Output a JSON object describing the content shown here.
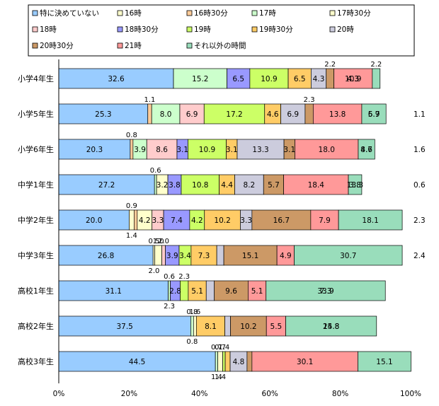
{
  "chart_data": {
    "type": "bar",
    "orientation": "horizontal",
    "stacked": "percent",
    "xlim": [
      0,
      100
    ],
    "x_ticks": [
      "0%",
      "20%",
      "40%",
      "60%",
      "80%",
      "100%"
    ],
    "legend_position": "top",
    "grid": false,
    "categories": [
      "小学4年生",
      "小学5年生",
      "小学6年生",
      "中学1年生",
      "中学2年生",
      "中学3年生",
      "高校1年生",
      "高校2年生",
      "高校3年生"
    ],
    "series": [
      {
        "name": "特に決めていない",
        "color": "#99ccff",
        "values": [
          32.6,
          25.3,
          20.3,
          27.2,
          20.0,
          26.8,
          31.1,
          37.5,
          44.5
        ]
      },
      {
        "name": "16時",
        "color": "#ffffcc",
        "values": [
          0.0,
          0.0,
          0.0,
          0.0,
          1.4,
          0.5,
          0.0,
          0.0,
          0.0
        ]
      },
      {
        "name": "16時30分",
        "color": "#ffcc99",
        "values": [
          0.0,
          1.1,
          0.8,
          0.0,
          0.9,
          0.0,
          0.0,
          0.0,
          0.0
        ]
      },
      {
        "name": "17時",
        "color": "#ccffcc",
        "values": [
          15.2,
          8.0,
          3.9,
          0.6,
          0.0,
          0.0,
          0.6,
          0.8,
          0.7
        ]
      },
      {
        "name": "17時30分",
        "color": "#ffffcc",
        "values": [
          0.0,
          0.0,
          0.0,
          3.2,
          4.2,
          2.0,
          0.0,
          0.8,
          1.4
        ]
      },
      {
        "name": "18時",
        "color": "#ffcccc",
        "values": [
          0.0,
          6.9,
          8.6,
          0.0,
          3.3,
          1.0,
          0.0,
          0.0,
          0.0
        ]
      },
      {
        "name": "18時30分",
        "color": "#9999ff",
        "values": [
          6.5,
          0.0,
          3.1,
          3.8,
          7.4,
          3.9,
          2.8,
          0.0,
          0.0
        ]
      },
      {
        "name": "19時",
        "color": "#ccff66",
        "values": [
          10.9,
          17.2,
          10.9,
          10.8,
          4.2,
          3.4,
          2.3,
          0.0,
          0.7
        ]
      },
      {
        "name": "19時30分",
        "color": "#ffcc66",
        "values": [
          6.5,
          4.6,
          3.1,
          4.4,
          10.2,
          7.3,
          5.1,
          8.1,
          1.4
        ]
      },
      {
        "name": "20時",
        "color": "#ccccdd",
        "values": [
          4.3,
          6.9,
          13.3,
          8.2,
          3.3,
          2.0,
          2.3,
          1.6,
          4.8
        ]
      },
      {
        "name": "20時30分",
        "color": "#cc9966",
        "values": [
          2.2,
          2.3,
          3.1,
          5.7,
          16.7,
          15.1,
          9.6,
          10.2,
          1.4
        ]
      },
      {
        "name": "21時",
        "color": "#ff9999",
        "values": [
          10.9,
          13.8,
          18.0,
          18.4,
          7.9,
          4.9,
          5.1,
          5.5,
          30.1
        ]
      },
      {
        "name": "それ以外の時間",
        "color": "#99ddbb",
        "values": [
          2.2,
          6.9,
          4.7,
          3.8,
          18.1,
          30.7,
          33.9,
          25.8,
          15.1
        ]
      }
    ],
    "data_labels": [
      {
        "row": 0,
        "inside": [
          "32.6",
          "15.2",
          "6.5",
          "10.9",
          "6.5",
          "4.3",
          "10.9",
          "4.3",
          "4.3"
        ],
        "above": [
          "2.2",
          "2.2"
        ],
        "below": [],
        "right": ""
      },
      {
        "row": 1,
        "inside": [
          "25.3",
          "8.0",
          "6.9",
          "17.2",
          "4.6",
          "6.9",
          "13.8",
          "6.9",
          "5.7"
        ],
        "above": [
          "1.1",
          "2.3"
        ],
        "below": [],
        "right": "1.1"
      },
      {
        "row": 2,
        "inside": [
          "20.3",
          "3.9",
          "8.6",
          "3.1",
          "10.9",
          "3.1",
          "13.3",
          "3.1",
          "18.0",
          "4.7",
          "8.6"
        ],
        "above": [
          "0.8"
        ],
        "below": [],
        "right": "1.6"
      },
      {
        "row": 3,
        "inside": [
          "27.2",
          "3.2",
          "3.8",
          "10.8",
          "4.4",
          "8.2",
          "5.7",
          "18.4",
          "3.8",
          "13.3"
        ],
        "above": [
          "0.6"
        ],
        "below": [],
        "right": "0.6"
      },
      {
        "row": 4,
        "inside": [
          "20.0",
          "4.2",
          "3.3",
          "7.4",
          "4.2",
          "10.2",
          "3.3",
          "16.7",
          "7.9",
          "18.1"
        ],
        "above": [
          "0.9"
        ],
        "below": [
          "1.4"
        ],
        "right": "2.3"
      },
      {
        "row": 5,
        "inside": [
          "26.8",
          "3.9",
          "3.4",
          "7.3",
          "15.1",
          "4.9",
          "30.7"
        ],
        "above": [
          "0.5",
          "1.0",
          "2.0"
        ],
        "below": [
          "2.0"
        ],
        "right": "2.4"
      },
      {
        "row": 6,
        "inside": [
          "31.1",
          "2.8",
          "5.1",
          "9.6",
          "5.1",
          "33.9",
          "7.3"
        ],
        "above": [
          "0.6",
          "2.3"
        ],
        "below": [
          "2.3"
        ],
        "right": ""
      },
      {
        "row": 7,
        "inside": [
          "37.5",
          "8.1",
          "10.2",
          "5.5",
          "25.8",
          "14.8"
        ],
        "above": [
          "0.8",
          "1.6"
        ],
        "below": [
          "0.8"
        ],
        "right": ""
      },
      {
        "row": 8,
        "inside": [
          "44.5",
          "4.8",
          "30.1",
          "15.1"
        ],
        "above": [
          "0.7",
          "0.7",
          "1.4"
        ],
        "below": [
          "1.4",
          "1.4"
        ],
        "right": ""
      }
    ]
  }
}
